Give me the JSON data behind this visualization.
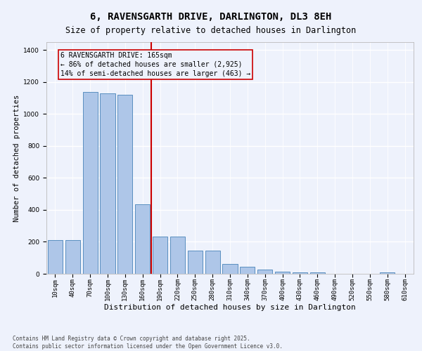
{
  "title": "6, RAVENSGARTH DRIVE, DARLINGTON, DL3 8EH",
  "subtitle": "Size of property relative to detached houses in Darlington",
  "xlabel": "Distribution of detached houses by size in Darlington",
  "ylabel": "Number of detached properties",
  "categories": [
    "10sqm",
    "40sqm",
    "70sqm",
    "100sqm",
    "130sqm",
    "160sqm",
    "190sqm",
    "220sqm",
    "250sqm",
    "280sqm",
    "310sqm",
    "340sqm",
    "370sqm",
    "400sqm",
    "430sqm",
    "460sqm",
    "490sqm",
    "520sqm",
    "550sqm",
    "580sqm",
    "610sqm"
  ],
  "values": [
    210,
    210,
    1140,
    1130,
    1120,
    435,
    235,
    235,
    145,
    145,
    60,
    42,
    25,
    15,
    10,
    10,
    0,
    0,
    0,
    10,
    0
  ],
  "bar_color": "#aec6e8",
  "bar_edge_color": "#5a8fc0",
  "vline_x": 5.5,
  "vline_color": "#cc0000",
  "annotation_text": "6 RAVENSGARTH DRIVE: 165sqm\n← 86% of detached houses are smaller (2,925)\n14% of semi-detached houses are larger (463) →",
  "annotation_box_color": "#cc0000",
  "ylim": [
    0,
    1450
  ],
  "yticks": [
    0,
    200,
    400,
    600,
    800,
    1000,
    1200,
    1400
  ],
  "background_color": "#eef2fc",
  "grid_color": "#ffffff",
  "footer": "Contains HM Land Registry data © Crown copyright and database right 2025.\nContains public sector information licensed under the Open Government Licence v3.0.",
  "title_fontsize": 10,
  "subtitle_fontsize": 8.5,
  "xlabel_fontsize": 8,
  "ylabel_fontsize": 7.5,
  "tick_fontsize": 6.5,
  "annotation_fontsize": 7,
  "footer_fontsize": 5.5
}
